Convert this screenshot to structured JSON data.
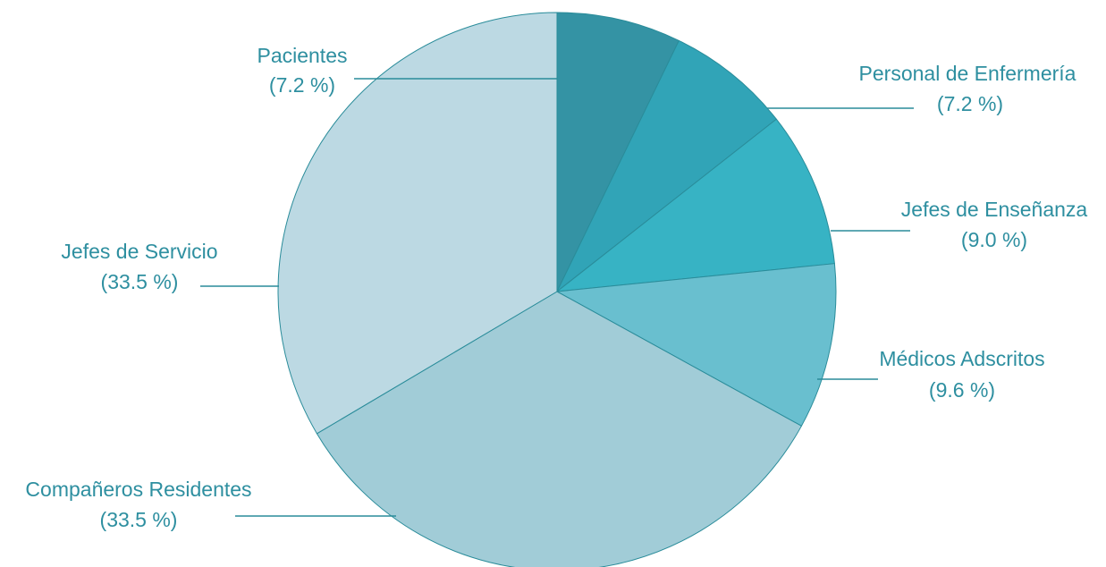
{
  "chart_data": {
    "type": "pie",
    "start_angle_deg": 0,
    "direction": "clockwise",
    "categories": [
      "Pacientes",
      "Personal de Enfermería",
      "Jefes de Enseñanza",
      "Médicos Adscritos",
      "Compañeros Residentes",
      "Jefes de Servicio"
    ],
    "values": [
      7.2,
      7.2,
      9.0,
      9.6,
      33.5,
      33.5
    ],
    "labels": [
      {
        "name": "Pacientes",
        "percent": "(7.2 %)"
      },
      {
        "name": "Personal de Enfermería",
        "percent": "(7.2 %)"
      },
      {
        "name": "Jefes de Enseñanza",
        "percent": "(9.0 %)"
      },
      {
        "name": "Médicos Adscritos",
        "percent": "(9.6 %)"
      },
      {
        "name": "Compañeros Residentes",
        "percent": "(33.5 %)"
      },
      {
        "name": "Jefes de Servicio",
        "percent": "(33.5 %)"
      }
    ],
    "colors": [
      "#3493a4",
      "#31a4b7",
      "#37b3c4",
      "#69bfcf",
      "#a1ccd7",
      "#bcd9e3"
    ],
    "label_color": "#2e8fa0",
    "line_color": "#2a8c9a",
    "title": "",
    "legend": "none (labels beside slices)"
  }
}
